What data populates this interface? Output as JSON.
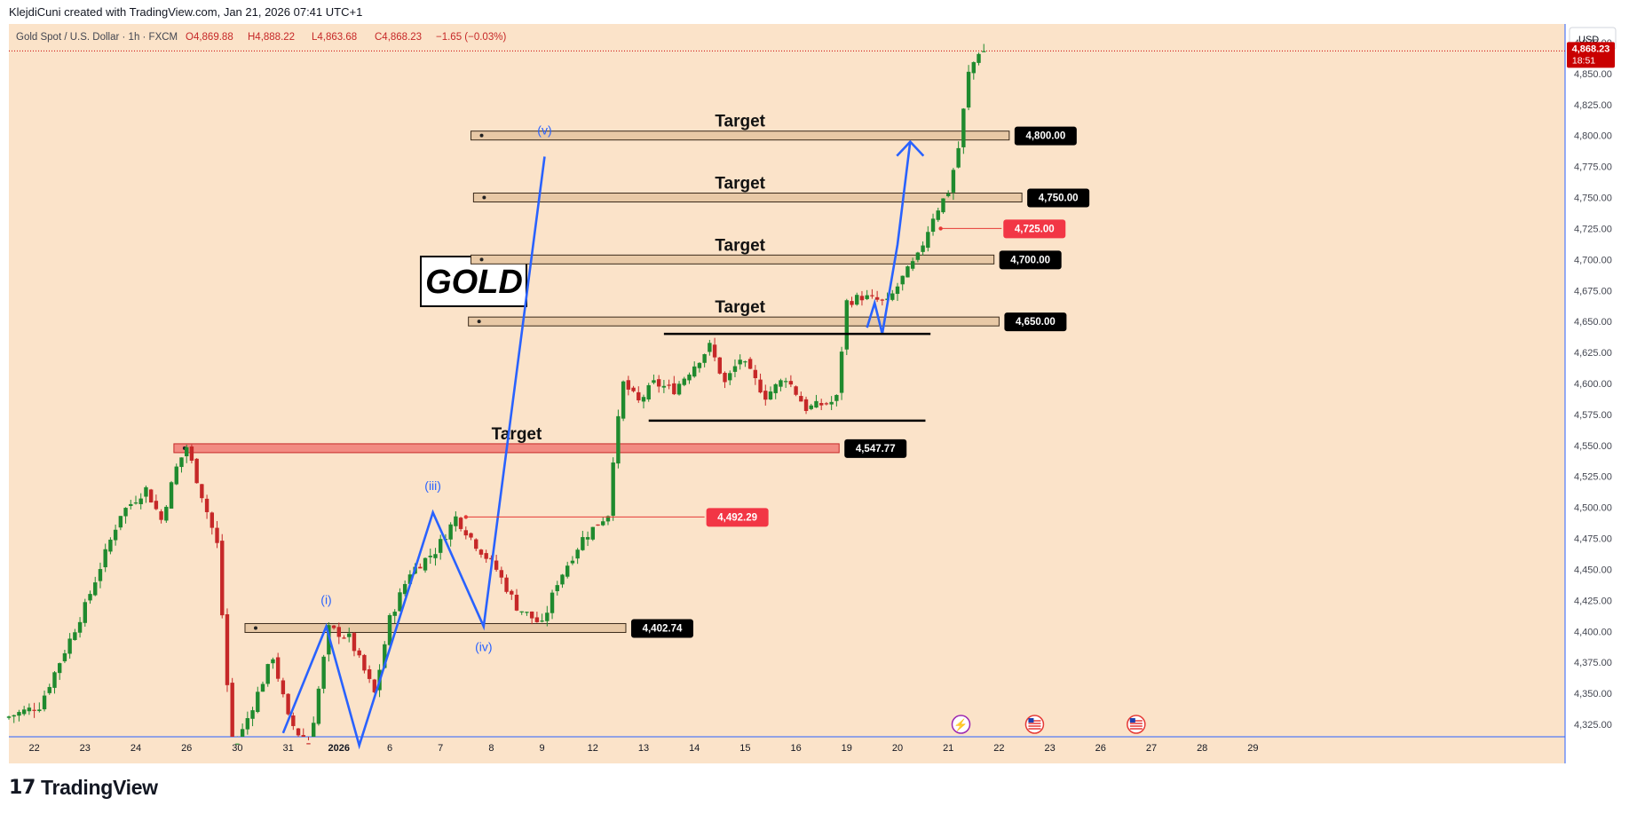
{
  "header": {
    "attribution": "KlejdiCuni created with TradingView.com, Jan 21, 2026 07:41 UTC+1"
  },
  "legend": {
    "symbol": "Gold Spot / U.S. Dollar · 1h · FXCM",
    "o": "O4,869.88",
    "h": "H4,888.22",
    "l": "L4,863.68",
    "c": "C4,868.23",
    "chg": "−1.65 (−0.03%)"
  },
  "currency_button": "USD",
  "price_badge": {
    "price": "4,868.23",
    "countdown": "18:51",
    "color": "#c90000"
  },
  "logo_box_text": "GOLD",
  "brand": {
    "name": "TradingView",
    "mark": "17"
  },
  "colors": {
    "background": "#fbe3c9",
    "up": "#1f8a2e",
    "down": "#c62828",
    "wave": "#2962ff",
    "target_zone": "#e8c9a6",
    "red_zone": "#f28b82"
  },
  "chart_data": {
    "type": "candlestick",
    "title": "Gold Spot / U.S. Dollar",
    "timeframe": "1h",
    "y_axis": {
      "min": 4315,
      "max": 4890,
      "ticks": [
        "4,325.00",
        "4,350.00",
        "4,375.00",
        "4,400.00",
        "4,425.00",
        "4,450.00",
        "4,475.00",
        "4,500.00",
        "4,525.00",
        "4,550.00",
        "4,575.00",
        "4,600.00",
        "4,625.00",
        "4,650.00",
        "4,675.00",
        "4,700.00",
        "4,725.00",
        "4,750.00",
        "4,775.00",
        "4,800.00",
        "4,825.00",
        "4,850.00",
        "4,875.00"
      ]
    },
    "x_axis": {
      "ticks": [
        "22",
        "23",
        "24",
        "26",
        "30",
        "31",
        "2026",
        "6",
        "7",
        "8",
        "9",
        "12",
        "13",
        "14",
        "15",
        "16",
        "19",
        "20",
        "21",
        "22",
        "23",
        "26",
        "27",
        "28",
        "29"
      ],
      "tick_index": [
        0.5,
        1.5,
        2.5,
        3.5,
        4.5,
        5.5,
        6.5,
        7.5,
        8.5,
        9.5,
        10.5,
        11.5,
        12.5,
        13.5,
        14.5,
        15.5,
        16.5,
        17.5,
        18.5,
        19.5,
        20.5,
        21.5,
        22.5,
        23.5,
        24.5
      ]
    },
    "price_path": [
      [
        0.0,
        4330
      ],
      [
        0.7,
        4340
      ],
      [
        1.6,
        4420
      ],
      [
        2.3,
        4495
      ],
      [
        2.8,
        4515
      ],
      [
        3.1,
        4490
      ],
      [
        3.4,
        4532
      ],
      [
        3.6,
        4549
      ],
      [
        3.9,
        4510
      ],
      [
        4.2,
        4470
      ],
      [
        4.5,
        4300
      ],
      [
        4.9,
        4340
      ],
      [
        5.3,
        4380
      ],
      [
        5.6,
        4330
      ],
      [
        6.0,
        4305
      ],
      [
        6.4,
        4402
      ],
      [
        6.8,
        4395
      ],
      [
        7.3,
        4350
      ],
      [
        7.6,
        4410
      ],
      [
        8.0,
        4448
      ],
      [
        8.5,
        4465
      ],
      [
        8.9,
        4492
      ],
      [
        9.3,
        4470
      ],
      [
        9.7,
        4450
      ],
      [
        10.1,
        4420
      ],
      [
        10.6,
        4405
      ],
      [
        10.9,
        4440
      ],
      [
        11.4,
        4475
      ],
      [
        11.9,
        4495
      ],
      [
        12.0,
        4540
      ],
      [
        12.2,
        4600
      ],
      [
        12.5,
        4585
      ],
      [
        12.8,
        4600
      ],
      [
        13.2,
        4595
      ],
      [
        13.5,
        4610
      ],
      [
        13.9,
        4630
      ],
      [
        14.2,
        4600
      ],
      [
        14.5,
        4620
      ],
      [
        15.0,
        4590
      ],
      [
        15.4,
        4605
      ],
      [
        15.8,
        4580
      ],
      [
        16.3,
        4585
      ],
      [
        16.45,
        4590
      ],
      [
        16.55,
        4665
      ],
      [
        16.9,
        4670
      ],
      [
        17.4,
        4665
      ],
      [
        17.7,
        4685
      ],
      [
        18.0,
        4702
      ],
      [
        18.3,
        4735
      ],
      [
        18.6,
        4755
      ],
      [
        18.8,
        4790
      ],
      [
        19.0,
        4850
      ],
      [
        19.2,
        4868
      ]
    ],
    "wave_path": [
      [
        5.4,
        4318
      ],
      [
        6.25,
        4404
      ],
      [
        6.9,
        4308
      ],
      [
        8.35,
        4496
      ],
      [
        9.35,
        4404
      ],
      [
        10.55,
        4783
      ]
    ],
    "projection_path": [
      [
        16.9,
        4645
      ],
      [
        17.05,
        4665
      ],
      [
        17.2,
        4640
      ],
      [
        17.5,
        4712
      ],
      [
        17.75,
        4795
      ]
    ],
    "wave_labels": [
      {
        "text": "(i)",
        "x": 6.25,
        "y": 4422,
        "color": "#2962ff"
      },
      {
        "text": "(iii)",
        "x": 8.35,
        "y": 4514,
        "color": "#2962ff"
      },
      {
        "text": "(iv)",
        "x": 9.35,
        "y": 4384,
        "color": "#2962ff"
      },
      {
        "text": "(v)",
        "x": 10.55,
        "y": 4801,
        "color": "#2962ff"
      }
    ],
    "zones": [
      {
        "label": "Target",
        "price": 4800,
        "price_label": "4,800.00",
        "x0": 9.1,
        "x1": 19.7,
        "label_x": 14.4,
        "tag": "black"
      },
      {
        "label": "Target",
        "price": 4750,
        "price_label": "4,750.00",
        "x0": 9.15,
        "x1": 19.95,
        "label_x": 14.4,
        "tag": "black"
      },
      {
        "label": "Target",
        "price": 4700,
        "price_label": "4,700.00",
        "x0": 9.1,
        "x1": 19.4,
        "label_x": 14.4,
        "tag": "black"
      },
      {
        "label": "Target",
        "price": 4650,
        "price_label": "4,650.00",
        "x0": 9.05,
        "x1": 19.5,
        "label_x": 14.4,
        "tag": "black"
      },
      {
        "label": "Target",
        "price": 4547.77,
        "price_label": "4,547.77",
        "x0": 3.25,
        "x1": 16.35,
        "label_x": 10.0,
        "tag": "black",
        "red": true
      },
      {
        "label": "",
        "price": 4402.74,
        "price_label": "4,402.74",
        "x0": 4.65,
        "x1": 12.15,
        "label_x": 0,
        "tag": "black"
      }
    ],
    "level_lines": [
      {
        "price": 4725,
        "price_label": "4,725.00",
        "x0": 18.35,
        "x1": 19.55,
        "tag": "red"
      },
      {
        "price": 4492.29,
        "price_label": "4,492.29",
        "x0": 9.0,
        "x1": 13.7,
        "tag": "red"
      }
    ],
    "support_lines": [
      {
        "price": 4640,
        "x0": 12.9,
        "x1": 18.15
      },
      {
        "price": 4570,
        "x0": 12.6,
        "x1": 18.05
      }
    ],
    "event_markers": [
      {
        "icon": "lightning-icon",
        "x": 18.75
      },
      {
        "icon": "us-flag-icon",
        "x": 20.2
      },
      {
        "icon": "us-flag-icon",
        "x": 22.2
      }
    ],
    "last_price": 4868.23,
    "grid": false
  }
}
